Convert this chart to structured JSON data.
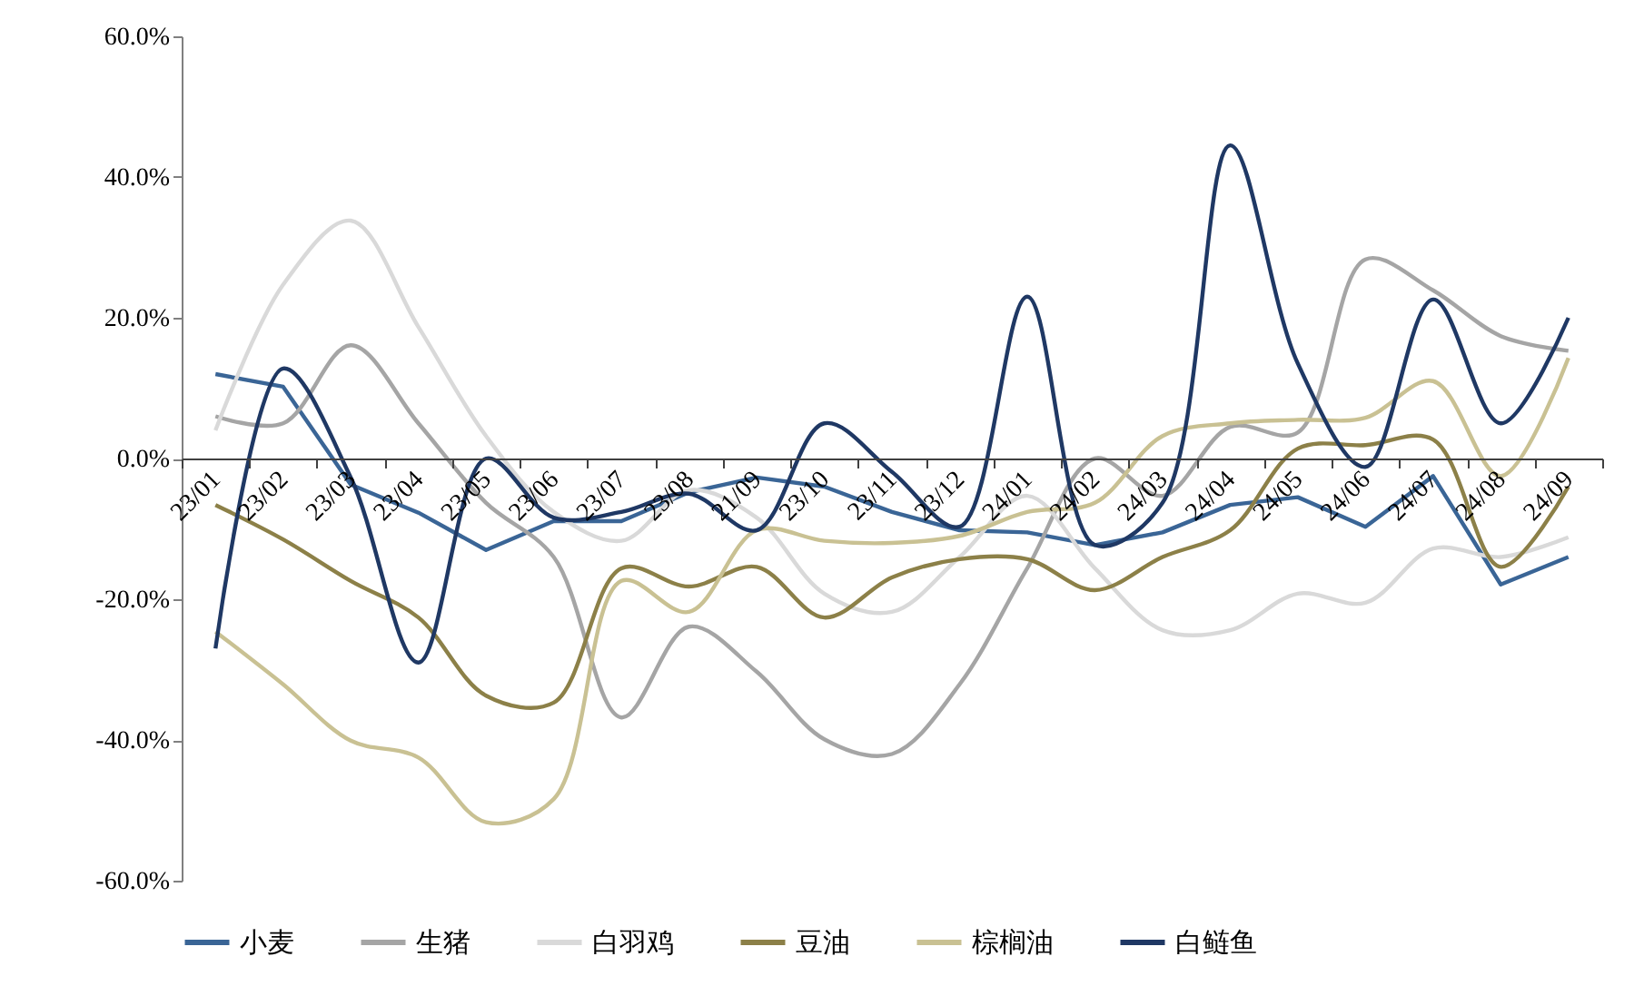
{
  "chart_data": {
    "type": "line",
    "categories": [
      "23/01",
      "23/02",
      "23/03",
      "23/04",
      "23/05",
      "23/06",
      "23/07",
      "23/08",
      "21/09",
      "23/10",
      "23/11",
      "23/12",
      "24/01",
      "24/02",
      "24/03",
      "24/04",
      "24/05",
      "24/06",
      "24/07",
      "24/08",
      "24/09"
    ],
    "series": [
      {
        "name": "小麦",
        "color": "#3a6596",
        "values": [
          12.0,
          10.2,
          -3.7,
          -7.7,
          -13.0,
          -8.9,
          -8.9,
          -4.8,
          -2.7,
          -4.0,
          -7.6,
          -10.2,
          -10.5,
          -12.3,
          -10.5,
          -6.6,
          -5.5,
          -9.7,
          -2.5,
          -17.9,
          -14.0
        ]
      },
      {
        "name": "生猪",
        "color": "#a5a5a5",
        "values": [
          6.0,
          5.0,
          16.1,
          5.0,
          -6.3,
          -14.0,
          -36.8,
          -23.9,
          -30.3,
          -39.9,
          -42.0,
          -32.1,
          -15.6,
          0.0,
          -5.3,
          4.5,
          3.7,
          28.3,
          23.9,
          17.4,
          15.3
        ]
      },
      {
        "name": "白羽鸡",
        "color": "#d9d9d9",
        "values": [
          4.0,
          24.7,
          33.8,
          18.7,
          3.2,
          -7.6,
          -11.7,
          -4.5,
          -8.4,
          -19.2,
          -21.8,
          -14.0,
          -5.3,
          -15.6,
          -24.4,
          -24.4,
          -19.2,
          -20.5,
          -12.8,
          -14.0,
          -11.2
        ]
      },
      {
        "name": "豆油",
        "color": "#8c8048",
        "values": [
          -6.6,
          -11.5,
          -17.4,
          -22.6,
          -33.7,
          -34.7,
          -15.6,
          -18.2,
          -15.4,
          -22.6,
          -16.9,
          -14.3,
          -14.3,
          -18.7,
          -14.0,
          -10.2,
          1.4,
          1.9,
          2.7,
          -15.4,
          -4.0
        ]
      },
      {
        "name": "棕榈油",
        "color": "#c9c193",
        "values": [
          -24.6,
          -32.1,
          -40.1,
          -42.5,
          -51.7,
          -48.4,
          -17.4,
          -21.8,
          -10.2,
          -11.7,
          -12.0,
          -11.0,
          -7.6,
          -6.3,
          3.2,
          5.0,
          5.5,
          5.8,
          11.0,
          -2.5,
          14.3
        ]
      },
      {
        "name": "白鲢鱼",
        "color": "#1f3864",
        "values": [
          -27.0,
          12.8,
          -2.7,
          -29.0,
          0.0,
          -8.4,
          -7.6,
          -5.0,
          -10.2,
          5.0,
          -1.9,
          -9.7,
          23.0,
          -12.3,
          -6.3,
          44.5,
          13.5,
          -1.2,
          22.6,
          5.0,
          20.0
        ]
      }
    ],
    "ylim": [
      -60,
      60
    ],
    "yticks": [
      {
        "value": -60,
        "label": "-60.0%"
      },
      {
        "value": -40,
        "label": "-40.0%"
      },
      {
        "value": -20,
        "label": "-20.0%"
      },
      {
        "value": 0,
        "label": "0.0%"
      },
      {
        "value": 20,
        "label": "20.0%"
      },
      {
        "value": 40,
        "label": "40.0%"
      },
      {
        "value": 60,
        "label": "60.0%"
      }
    ],
    "grid": false,
    "legend": "bottom",
    "marker": "none",
    "line_style": "solid"
  }
}
